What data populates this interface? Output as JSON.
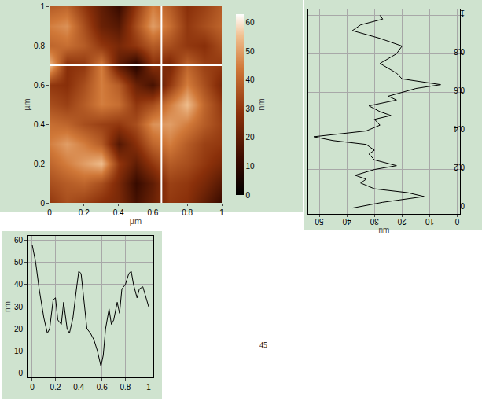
{
  "chart_data": [
    {
      "type": "heatmap",
      "x": [
        0,
        0.1,
        0.2,
        0.3,
        0.4,
        0.5,
        0.6,
        0.7,
        0.8,
        0.9,
        1.0
      ],
      "y": [
        0,
        0.1,
        0.2,
        0.3,
        0.4,
        0.5,
        0.6,
        0.7,
        0.8,
        0.9,
        1.0
      ],
      "z": [
        [
          30,
          35,
          32,
          28,
          25,
          15,
          22,
          30,
          28,
          20,
          12
        ],
        [
          35,
          38,
          40,
          35,
          25,
          12,
          20,
          32,
          30,
          25,
          18
        ],
        [
          40,
          45,
          50,
          55,
          30,
          20,
          30,
          38,
          35,
          30,
          25
        ],
        [
          45,
          50,
          45,
          38,
          18,
          28,
          40,
          45,
          38,
          32,
          30
        ],
        [
          42,
          40,
          35,
          32,
          30,
          35,
          48,
          50,
          45,
          38,
          32
        ],
        [
          35,
          32,
          38,
          45,
          42,
          30,
          35,
          45,
          55,
          40,
          30
        ],
        [
          30,
          28,
          35,
          45,
          38,
          22,
          15,
          30,
          45,
          35,
          25
        ],
        [
          55,
          28,
          30,
          45,
          20,
          8,
          28,
          25,
          40,
          32,
          30
        ],
        [
          40,
          42,
          38,
          30,
          25,
          30,
          38,
          35,
          30,
          28,
          35
        ],
        [
          45,
          48,
          35,
          22,
          18,
          35,
          50,
          42,
          30,
          35,
          40
        ],
        [
          38,
          40,
          30,
          20,
          12,
          30,
          45,
          38,
          28,
          32,
          38
        ]
      ],
      "xlim": [
        0,
        1
      ],
      "ylim": [
        0,
        1
      ],
      "xticks": [
        0,
        0.2,
        0.4,
        0.6,
        0.8,
        1
      ],
      "yticks": [
        0,
        0.2,
        0.4,
        0.6,
        0.8,
        1
      ],
      "x_label": "µm",
      "y_label": "µm",
      "zlim": [
        0,
        63
      ],
      "colorbar_ticks": [
        0,
        10,
        20,
        30,
        40,
        50,
        60
      ],
      "colorbar_label": "nm",
      "profile_x": 0.65,
      "profile_y": 0.7,
      "grid": false
    },
    {
      "type": "line",
      "x": [
        38,
        27,
        12,
        18,
        30,
        35,
        33,
        37,
        30,
        22,
        30,
        32,
        30,
        33,
        45,
        52,
        33,
        28,
        30,
        24,
        28,
        32,
        22,
        25,
        15,
        6,
        20,
        22,
        28,
        22,
        20,
        28,
        38,
        35,
        27,
        28
      ],
      "y": [
        0,
        0.03,
        0.06,
        0.08,
        0.1,
        0.13,
        0.15,
        0.17,
        0.2,
        0.22,
        0.25,
        0.28,
        0.3,
        0.33,
        0.35,
        0.37,
        0.4,
        0.43,
        0.46,
        0.48,
        0.5,
        0.53,
        0.56,
        0.58,
        0.62,
        0.64,
        0.67,
        0.7,
        0.75,
        0.8,
        0.84,
        0.88,
        0.92,
        0.95,
        0.98,
        1.0
      ],
      "xlim": [
        54,
        -1
      ],
      "ylim": [
        -0.03,
        1.03
      ],
      "xticks": [
        0,
        10,
        20,
        30,
        40,
        50
      ],
      "yticks": [
        0,
        0.2,
        0.4,
        0.6,
        0.8,
        1
      ],
      "x_label": "nm",
      "color": "#000000",
      "grid": true
    },
    {
      "type": "line",
      "x": [
        0,
        0.03,
        0.06,
        0.1,
        0.13,
        0.15,
        0.18,
        0.2,
        0.22,
        0.25,
        0.27,
        0.3,
        0.32,
        0.35,
        0.38,
        0.4,
        0.42,
        0.44,
        0.47,
        0.5,
        0.53,
        0.56,
        0.59,
        0.61,
        0.63,
        0.66,
        0.68,
        0.7,
        0.73,
        0.75,
        0.77,
        0.8,
        0.83,
        0.85,
        0.87,
        0.9,
        0.92,
        0.95,
        0.98,
        1.0
      ],
      "y": [
        58,
        50,
        38,
        25,
        18,
        20,
        33,
        34,
        24,
        22,
        32,
        20,
        18,
        25,
        38,
        46,
        45,
        35,
        20,
        18,
        15,
        10,
        3,
        8,
        20,
        29,
        22,
        24,
        32,
        27,
        38,
        40,
        45,
        46,
        40,
        34,
        38,
        39,
        33,
        30
      ],
      "xlim": [
        -0.04,
        1.04
      ],
      "ylim": [
        -2,
        62
      ],
      "xticks": [
        0,
        0.2,
        0.4,
        0.6,
        0.8,
        1
      ],
      "yticks": [
        0,
        10,
        20,
        30,
        40,
        50,
        60
      ],
      "y_label": "nm",
      "color": "#000000",
      "grid": true
    }
  ],
  "annotation": "45"
}
